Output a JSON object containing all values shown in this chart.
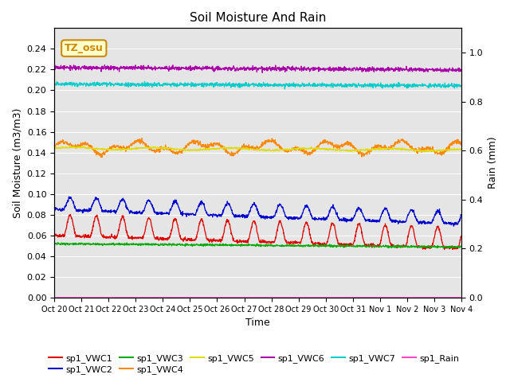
{
  "title": "Soil Moisture And Rain",
  "xlabel": "Time",
  "ylabel_left": "Soil Moisture (m3/m3)",
  "ylabel_right": "Rain (mm)",
  "annotation": "TZ_osu",
  "annotation_color": "#cc8800",
  "annotation_bg": "#ffffcc",
  "n_days": 15.5,
  "ylim_left": [
    0.0,
    0.26
  ],
  "ylim_right": [
    0.0,
    1.1
  ],
  "yticks_left": [
    0.0,
    0.02,
    0.04,
    0.06,
    0.08,
    0.1,
    0.12,
    0.14,
    0.16,
    0.18,
    0.2,
    0.22,
    0.24
  ],
  "yticks_right": [
    0.0,
    0.2,
    0.4,
    0.6,
    0.8,
    1.0
  ],
  "xtick_labels": [
    "Oct 20",
    "Oct 21",
    "Oct 22",
    "Oct 23",
    "Oct 24",
    "Oct 25",
    "Oct 26",
    "Oct 27",
    "Oct 28",
    "Oct 29",
    "Oct 30",
    "Oct 31",
    "Nov 1",
    "Nov 2",
    "Nov 3",
    "Nov 4"
  ],
  "bg_color": "#e5e5e5",
  "series_colors": {
    "VWC1": "#dd0000",
    "VWC2": "#0000cc",
    "VWC3": "#00aa00",
    "VWC4": "#ff8800",
    "VWC5": "#dddd00",
    "VWC6": "#aa00aa",
    "VWC7": "#00cccc",
    "Rain": "#ff44cc"
  },
  "legend_labels": [
    "sp1_VWC1",
    "sp1_VWC2",
    "sp1_VWC3",
    "sp1_VWC4",
    "sp1_VWC5",
    "sp1_VWC6",
    "sp1_VWC7",
    "sp1_Rain"
  ]
}
